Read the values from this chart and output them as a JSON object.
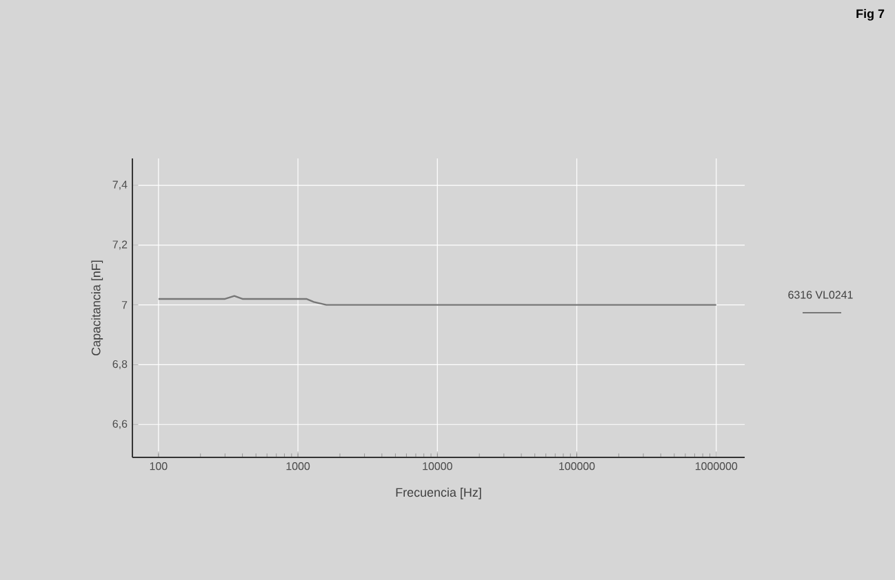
{
  "chart_data": {
    "type": "line",
    "title": "Fig 7",
    "xlabel": "Frecuencia [Hz]",
    "ylabel": "Capacitancia [nF]",
    "log": "x",
    "grid": true,
    "legend": "right",
    "marker": "none",
    "line_style": "solid",
    "xlim": [
      65,
      1600000
    ],
    "ylim": [
      6.49,
      7.49
    ],
    "xticks": [
      100,
      1000,
      10000,
      100000,
      1000000
    ],
    "yticks": [
      {
        "value": 6.6,
        "label": "6,6"
      },
      {
        "value": 6.8,
        "label": "6,8"
      },
      7,
      {
        "value": 7.2,
        "label": "7,2"
      },
      {
        "value": 7.4,
        "label": "7,4"
      }
    ],
    "series": [
      {
        "name": "6316 VL0241",
        "color": "#777777",
        "x": [
          100,
          150,
          200,
          250,
          300,
          350,
          400,
          500,
          600,
          800,
          1000,
          1150,
          1300,
          1600,
          2000,
          3000,
          5000,
          10000,
          100000,
          1000000
        ],
        "values": [
          7.02,
          7.02,
          7.02,
          7.02,
          7.02,
          7.03,
          7.02,
          7.02,
          7.02,
          7.02,
          7.02,
          7.02,
          7.01,
          7.0,
          7.0,
          7.0,
          7.0,
          7.0,
          7.0,
          7.0
        ]
      }
    ]
  }
}
